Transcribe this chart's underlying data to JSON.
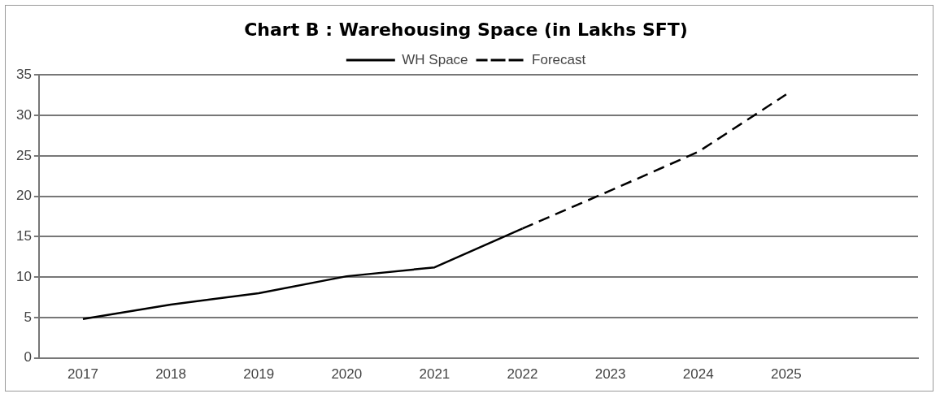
{
  "chart_data": {
    "type": "line",
    "title": "Chart B : Warehousing Space (in Lakhs SFT)",
    "categories": [
      "2017",
      "2018",
      "2019",
      "2020",
      "2021",
      "2022",
      "2023",
      "2024",
      "2025",
      null
    ],
    "series": [
      {
        "name": "WH Space",
        "color": "#000000",
        "line_style": "solid",
        "values": [
          4.8,
          6.6,
          8.0,
          10.1,
          11.2,
          16,
          null,
          null,
          null,
          null
        ]
      },
      {
        "name": "Forecast",
        "color": "#000000",
        "line_style": "dashed",
        "values": [
          null,
          null,
          null,
          null,
          null,
          16,
          20.7,
          25.5,
          32.6,
          null
        ]
      }
    ],
    "ylim": [
      0,
      35
    ],
    "yticks": [
      0,
      5,
      10,
      15,
      20,
      25,
      30,
      35
    ],
    "grid": "y",
    "legend": "top",
    "marker": "none"
  }
}
